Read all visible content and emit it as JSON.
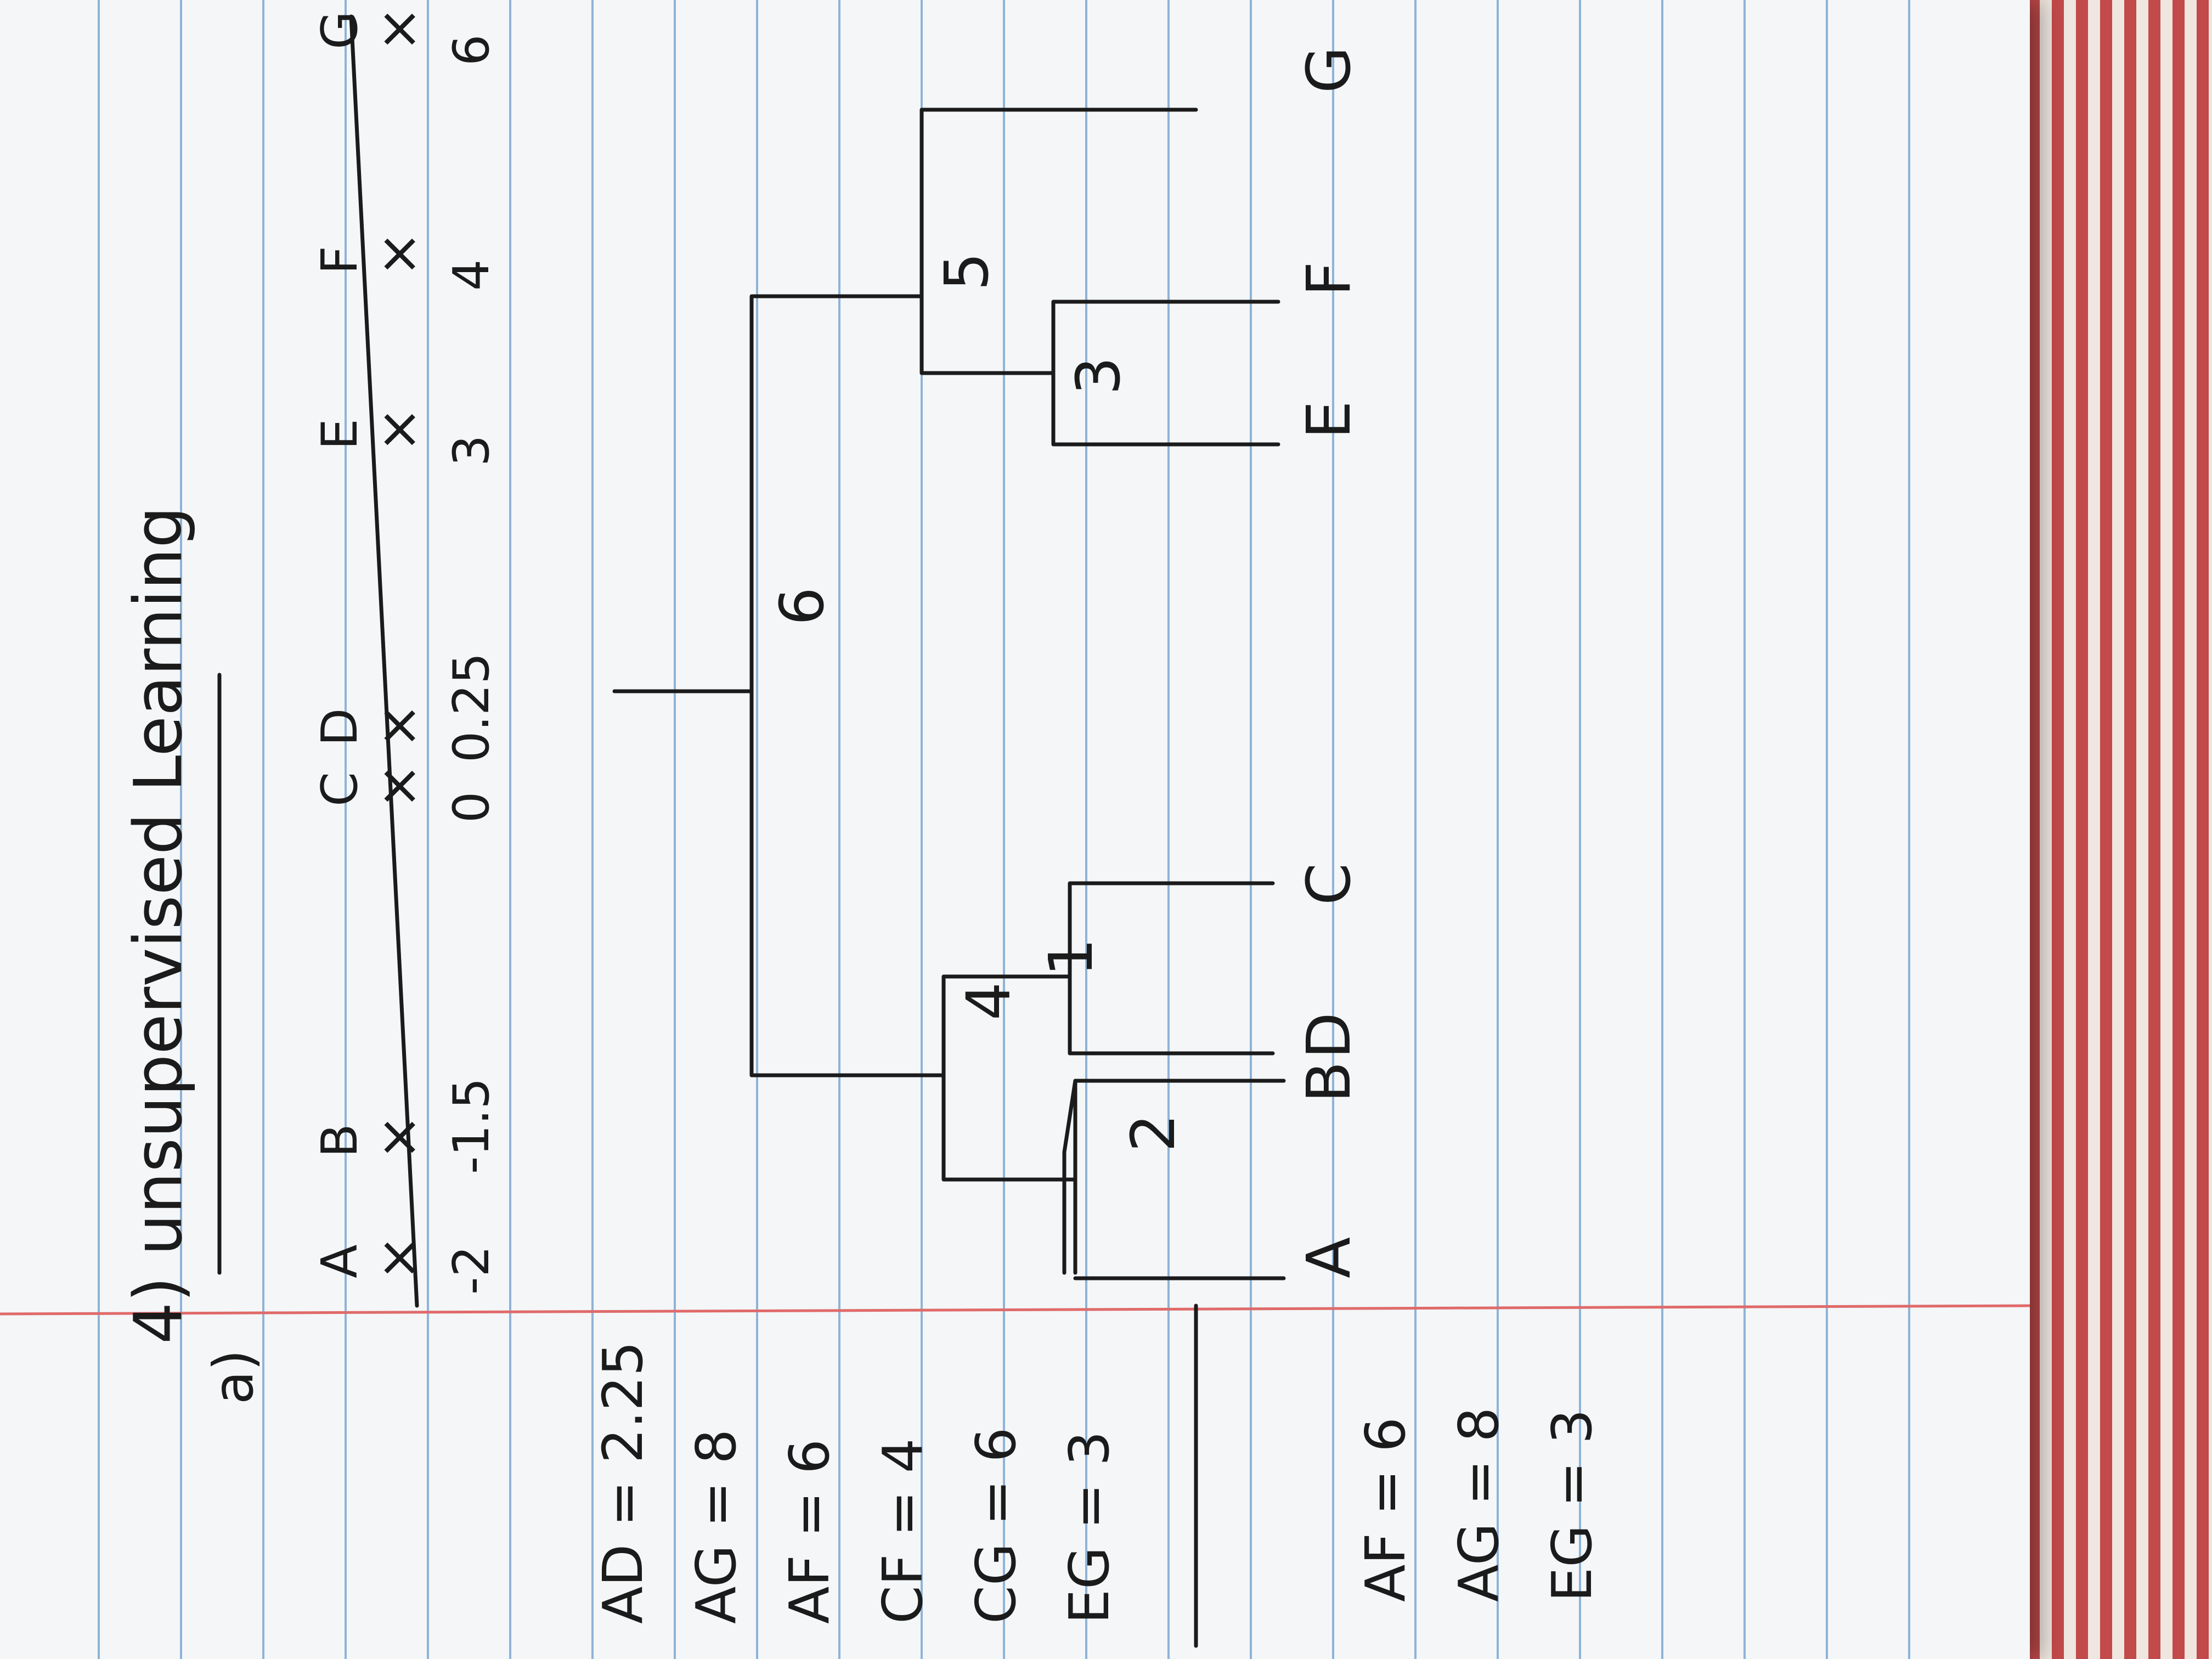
{
  "title": "4) unsupervised Learning",
  "part": "a)",
  "number_line": {
    "points": [
      {
        "label": "A",
        "value": "-2"
      },
      {
        "label": "B",
        "value": "-1.5"
      },
      {
        "label": "C",
        "value": "0"
      },
      {
        "label": "D",
        "value": "0.25"
      },
      {
        "label": "E",
        "value": "3"
      },
      {
        "label": "F",
        "value": "4"
      },
      {
        "label": "G",
        "value": "6"
      }
    ]
  },
  "distances": [
    "AD = 2.25",
    "AG = 8",
    "AF = 6",
    "CF = 4",
    "CG = 6",
    "EG = 3"
  ],
  "distances2": [
    "AF = 6",
    "AG = 8",
    "EG = 3"
  ],
  "dendrogram": {
    "leaves": [
      "A",
      "B",
      "C",
      "D",
      "E",
      "F",
      "G"
    ],
    "merge_heights": [
      "2",
      "1",
      "3",
      "4",
      "5",
      "6"
    ]
  }
}
